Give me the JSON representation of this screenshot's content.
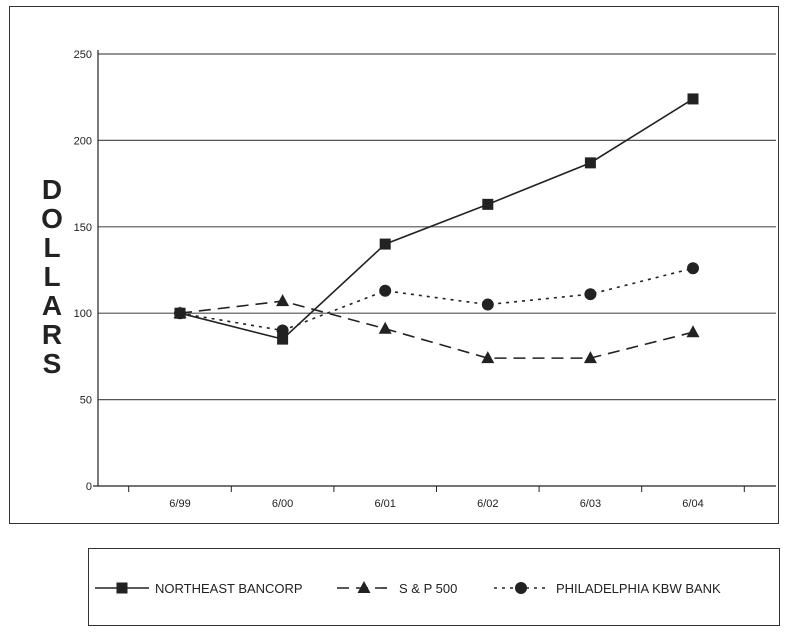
{
  "chart_data": {
    "type": "line",
    "title": "",
    "xlabel": "",
    "ylabel": "DOLLARS",
    "categories": [
      "6/99",
      "6/00",
      "6/01",
      "6/02",
      "6/03",
      "6/04"
    ],
    "ylim": [
      0,
      250
    ],
    "yticks": [
      0,
      50,
      100,
      150,
      200,
      250
    ],
    "grid": true,
    "legend_position": "bottom",
    "series": [
      {
        "name": "NORTHEAST BANCORP",
        "marker": "square",
        "dash": "solid",
        "color": "#222222",
        "values": [
          100,
          85,
          140,
          163,
          187,
          224
        ]
      },
      {
        "name": "S & P 500",
        "marker": "triangle",
        "dash": "dashed",
        "color": "#222222",
        "values": [
          100,
          107,
          91,
          74,
          74,
          89
        ]
      },
      {
        "name": "PHILADELPHIA KBW BANK",
        "marker": "circle",
        "dash": "dotted",
        "color": "#222222",
        "values": [
          100,
          90,
          113,
          105,
          111,
          126
        ]
      }
    ]
  }
}
